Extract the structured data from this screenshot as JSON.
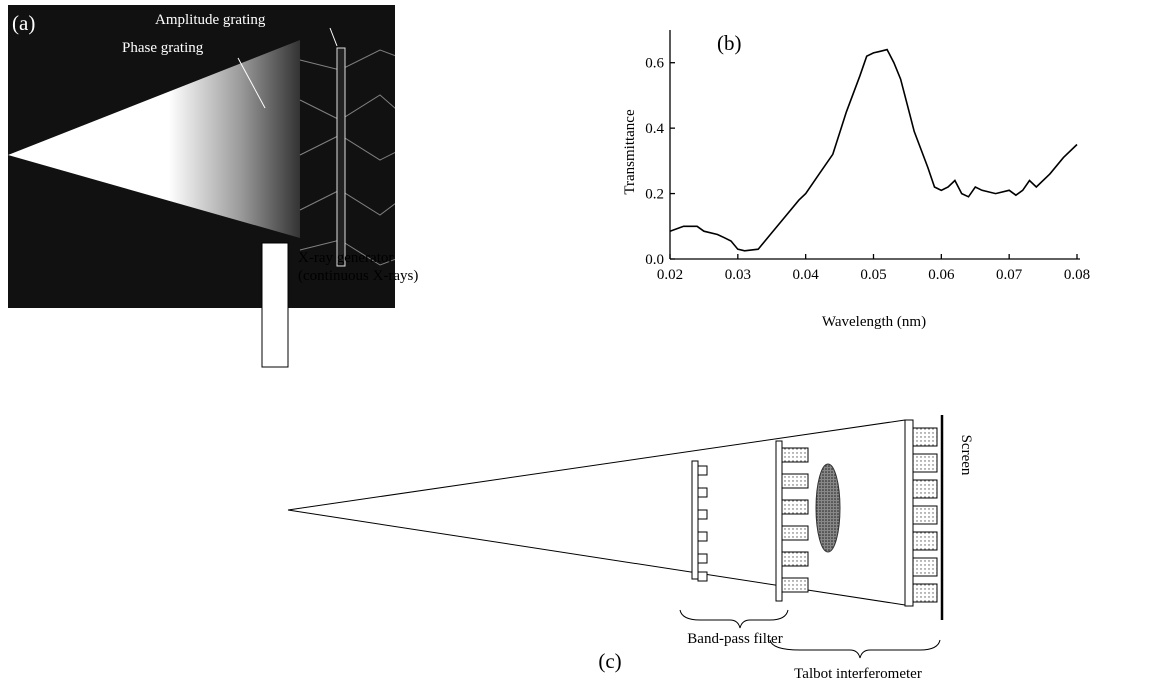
{
  "panel_a": {
    "label": "(a)",
    "amplitude_grating": "Amplitude grating",
    "phase_grating": "Phase grating"
  },
  "chart_data": {
    "type": "line",
    "panel_label": "(b)",
    "x_label": "Wavelength (nm)",
    "y_label": "Transmittance",
    "x": [
      0.02,
      0.022,
      0.024,
      0.025,
      0.027,
      0.028,
      0.029,
      0.03,
      0.031,
      0.033,
      0.035,
      0.037,
      0.039,
      0.04,
      0.042,
      0.044,
      0.046,
      0.048,
      0.049,
      0.05,
      0.051,
      0.052,
      0.053,
      0.054,
      0.055,
      0.056,
      0.058,
      0.059,
      0.06,
      0.061,
      0.062,
      0.063,
      0.064,
      0.065,
      0.066,
      0.068,
      0.07,
      0.071,
      0.072,
      0.073,
      0.074,
      0.076,
      0.078,
      0.08
    ],
    "values": [
      0.085,
      0.1,
      0.1,
      0.085,
      0.075,
      0.065,
      0.055,
      0.03,
      0.025,
      0.03,
      0.08,
      0.13,
      0.18,
      0.2,
      0.26,
      0.32,
      0.45,
      0.56,
      0.62,
      0.63,
      0.635,
      0.64,
      0.6,
      0.55,
      0.47,
      0.39,
      0.28,
      0.22,
      0.21,
      0.22,
      0.24,
      0.2,
      0.19,
      0.22,
      0.21,
      0.2,
      0.21,
      0.195,
      0.21,
      0.24,
      0.22,
      0.26,
      0.31,
      0.35
    ],
    "color": "#000000",
    "xlim": [
      0.02,
      0.08
    ],
    "xticks": [
      0.02,
      0.03,
      0.04,
      0.05,
      0.06,
      0.07,
      0.08
    ],
    "ylim": [
      0,
      0.7
    ],
    "yticks": [
      {
        "value": 0,
        "label": "0.0"
      },
      0.2,
      0.4,
      0.6
    ]
  },
  "panel_c": {
    "label": "(c)",
    "generator": "X-ray generator",
    "generator_note": "(continuous X-rays)",
    "band_pass": "Band-pass filter",
    "talbot": "Talbot interferometer",
    "screen": "Screen"
  }
}
